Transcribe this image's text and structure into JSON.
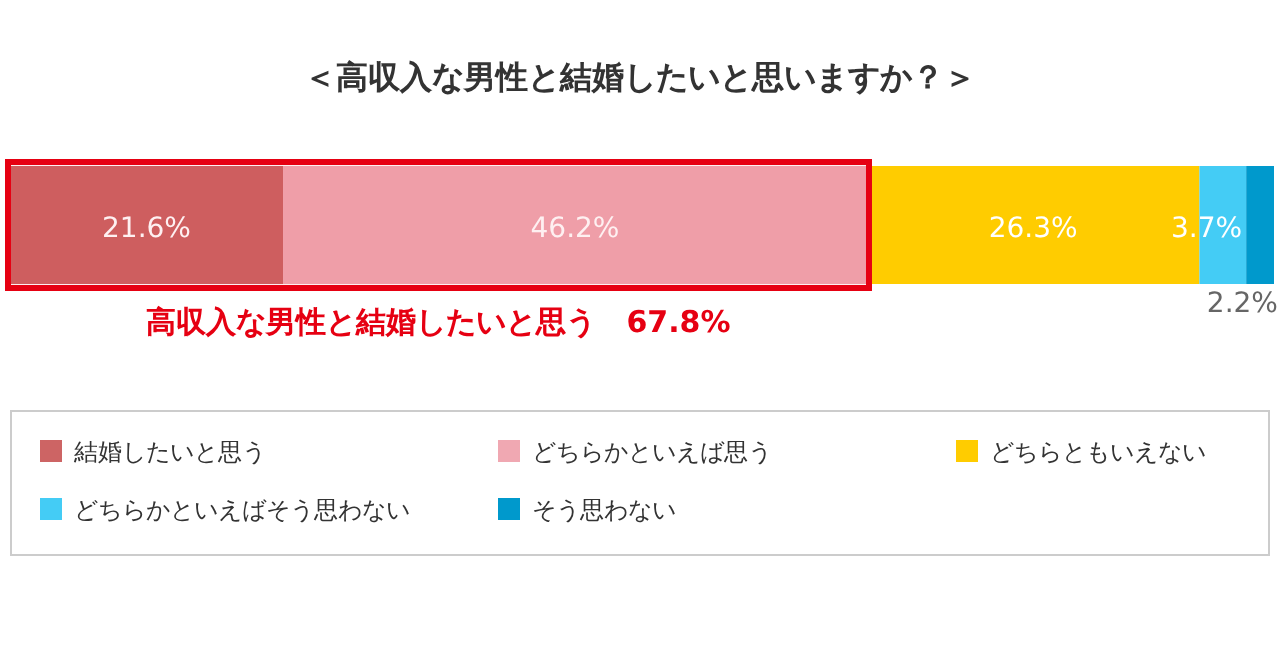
{
  "chart_data": {
    "type": "bar",
    "orientation": "horizontal",
    "stacked": true,
    "title": "＜高収入な男性と結婚したいと思いますか？＞",
    "categories": [
      null
    ],
    "legend": "bottom",
    "series": [
      {
        "name": "結婚したいと思う",
        "color": "#cd6464",
        "values": [
          21.6
        ],
        "value_labels": [
          "21.6%"
        ]
      },
      {
        "name": "どちらかといえば思う",
        "color": "#f0a8b2",
        "values": [
          46.2
        ],
        "value_labels": [
          "46.2%"
        ]
      },
      {
        "name": "どちらともいえない",
        "color": "#ffcc00",
        "values": [
          26.3
        ],
        "value_labels": [
          "26.3%"
        ]
      },
      {
        "name": "どちらかといえばそう思わない",
        "color": "#44ccf5",
        "values": [
          3.7
        ],
        "value_labels": [
          "3.7%"
        ]
      },
      {
        "name": "そう思わない",
        "color": "#0099cc",
        "values": [
          2.2
        ],
        "value_labels": [
          "2.2%"
        ]
      }
    ],
    "bands": [
      {
        "axis": "x",
        "from": 0,
        "to": 67.8,
        "label": "高収入な男性と結婚したいと思う　67.8%",
        "color": "#e60012"
      }
    ]
  }
}
